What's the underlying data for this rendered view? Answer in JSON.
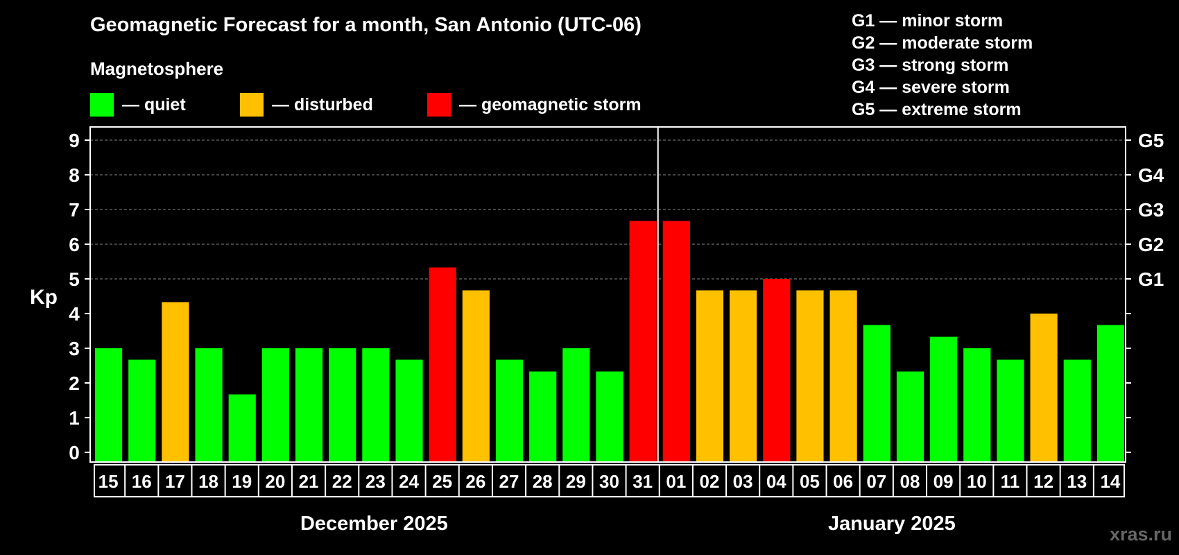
{
  "title": "Geomagnetic Forecast for a month, San Antonio (UTC-06)",
  "section_label": "Magnetosphere",
  "legend": [
    {
      "label": "— quiet",
      "color": "#00ff00"
    },
    {
      "label": "— disturbed",
      "color": "#ffc000"
    },
    {
      "label": "— geomagnetic storm",
      "color": "#ff0000"
    }
  ],
  "g_scale": [
    "G1 — minor storm",
    "G2 — moderate storm",
    "G3 — strong storm",
    "G4 — severe storm",
    "G5 — extreme storm"
  ],
  "watermark": "xras.ru",
  "chart_data": {
    "type": "bar",
    "title": "Geomagnetic Forecast for a month, San Antonio (UTC-06)",
    "ylabel": "Kp",
    "ylim": [
      0,
      9
    ],
    "yticks": [
      "0",
      "1",
      "2",
      "3",
      "4",
      "5",
      "6",
      "7",
      "8",
      "9"
    ],
    "right_axis_labels": [
      {
        "value": 5,
        "label": "G1"
      },
      {
        "value": 6,
        "label": "G2"
      },
      {
        "value": 7,
        "label": "G3"
      },
      {
        "value": 8,
        "label": "G4"
      },
      {
        "value": 9,
        "label": "G5"
      }
    ],
    "grid": "horizontal dashed",
    "categories": [
      "15",
      "16",
      "17",
      "18",
      "19",
      "20",
      "21",
      "22",
      "23",
      "24",
      "25",
      "26",
      "27",
      "28",
      "29",
      "30",
      "31",
      "01",
      "02",
      "03",
      "04",
      "05",
      "06",
      "07",
      "08",
      "09",
      "10",
      "11",
      "12",
      "13",
      "14"
    ],
    "values": [
      3.0,
      2.67,
      4.33,
      3.0,
      1.67,
      3.0,
      3.0,
      3.0,
      3.0,
      2.67,
      5.33,
      4.67,
      2.67,
      2.33,
      3.0,
      2.33,
      6.67,
      6.67,
      4.67,
      4.67,
      5.0,
      4.67,
      4.67,
      3.67,
      2.33,
      3.33,
      3.0,
      2.67,
      4.0,
      2.67,
      3.67
    ],
    "status": [
      "quiet",
      "quiet",
      "disturbed",
      "quiet",
      "quiet",
      "quiet",
      "quiet",
      "quiet",
      "quiet",
      "quiet",
      "storm",
      "disturbed",
      "quiet",
      "quiet",
      "quiet",
      "quiet",
      "storm",
      "storm",
      "disturbed",
      "disturbed",
      "storm",
      "disturbed",
      "disturbed",
      "quiet",
      "quiet",
      "quiet",
      "quiet",
      "quiet",
      "disturbed",
      "quiet",
      "quiet"
    ],
    "status_colors": {
      "quiet": "#00ff00",
      "disturbed": "#ffc000",
      "storm": "#ff0000"
    },
    "month_groups": [
      {
        "label": "December 2025",
        "count": 17
      },
      {
        "label": "January 2025",
        "count": 14
      }
    ]
  }
}
